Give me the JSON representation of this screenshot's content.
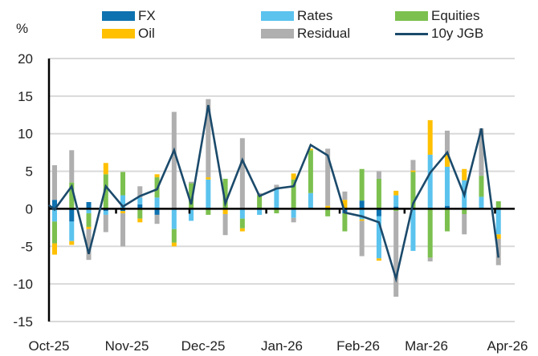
{
  "chart_data": {
    "type": "bar",
    "subtype": "stacked-bar-with-line",
    "title": "",
    "ylabel": "%",
    "xlabel": "",
    "ylim": [
      -15,
      20
    ],
    "yticks": [
      -15,
      -10,
      -5,
      0,
      5,
      10,
      15,
      20
    ],
    "grid": true,
    "legend_position": "top",
    "x_tick_labels": [
      "Oct-25",
      "Nov-25",
      "Dec-25",
      "Jan-26",
      "Feb-26",
      "Mar-26",
      "Apr-26"
    ],
    "month_start_index": [
      0,
      4.1,
      8.4,
      12.9,
      17.2,
      21.0,
      26.3
    ],
    "legend": [
      {
        "key": "FX",
        "label": "FX",
        "type": "bar",
        "color": "#0E72B0"
      },
      {
        "key": "Rates",
        "label": "Rates",
        "type": "bar",
        "color": "#5BC3EE"
      },
      {
        "key": "Equities",
        "label": "Equities",
        "type": "bar",
        "color": "#7CC04F"
      },
      {
        "key": "Oil",
        "label": "Oil",
        "type": "bar",
        "color": "#FFC000"
      },
      {
        "key": "Residual",
        "label": "Residual",
        "type": "bar",
        "color": "#AFAFAF"
      },
      {
        "key": "JGB",
        "label": "10y JGB",
        "type": "line",
        "color": "#1B4A6B"
      }
    ],
    "series": [
      {
        "name": "FX",
        "values": [
          1.2,
          -1.7,
          0.9,
          -0.3,
          -0.3,
          0.6,
          -0.8,
          0,
          0,
          0,
          0,
          0,
          0,
          0,
          0,
          0,
          0,
          -0.6,
          1.1,
          -1.0,
          0.3,
          0,
          0,
          0.4,
          0,
          0,
          0
        ]
      },
      {
        "name": "Rates",
        "values": [
          -1.7,
          -2.6,
          -0.6,
          -0.5,
          1.8,
          0.9,
          1.5,
          -2.7,
          -1.6,
          3.9,
          0,
          -1.3,
          -0.8,
          2.6,
          -1.2,
          2.1,
          0,
          0,
          -1.4,
          -5.6,
          1.5,
          -5.6,
          7.2,
          5.2,
          3.8,
          1.6,
          -3.4
        ]
      },
      {
        "name": "Equities",
        "values": [
          -2.9,
          3.5,
          -1.8,
          4.6,
          3.1,
          -1.3,
          2.7,
          -1.8,
          3.4,
          -0.8,
          4.0,
          -1.3,
          1.8,
          -0.6,
          3.9,
          5.7,
          -1.0,
          -2.4,
          4.2,
          4.0,
          -0.3,
          4.9,
          -6.5,
          -3.0,
          -0.7,
          2.8,
          1.0
        ]
      },
      {
        "name": "Oil",
        "values": [
          -1.5,
          -0.5,
          -0.3,
          1.5,
          -0.3,
          -0.5,
          0.4,
          -0.5,
          0,
          0.3,
          -0.7,
          -0.4,
          0,
          0,
          0.8,
          0.2,
          0.4,
          1.2,
          -0.2,
          -0.3,
          0.6,
          0.2,
          4.6,
          1.7,
          1.5,
          0,
          -0.6
        ]
      },
      {
        "name": "Residual",
        "values": [
          4.6,
          4.3,
          -4.1,
          -2.3,
          -4.4,
          1.5,
          -1.2,
          12.9,
          0.2,
          10.4,
          -2.8,
          9.4,
          0.3,
          0.6,
          -0.6,
          0,
          7.6,
          1.1,
          -4.7,
          1.0,
          -11.4,
          1.4,
          -0.5,
          3.1,
          -2.7,
          6.3,
          -3.5
        ]
      }
    ],
    "line": {
      "name": "10y JGB",
      "x_start_value": 0.5,
      "values": [
        -0.1,
        3.0,
        -6.0,
        3.0,
        0.3,
        1.7,
        2.6,
        7.8,
        0.6,
        13.8,
        0.7,
        6.5,
        1.7,
        2.7,
        3.0,
        8.5,
        7.1,
        -0.5,
        -1.0,
        -1.8,
        -9.3,
        0.7,
        4.8,
        7.5,
        1.8,
        10.7,
        -6.5
      ]
    }
  }
}
